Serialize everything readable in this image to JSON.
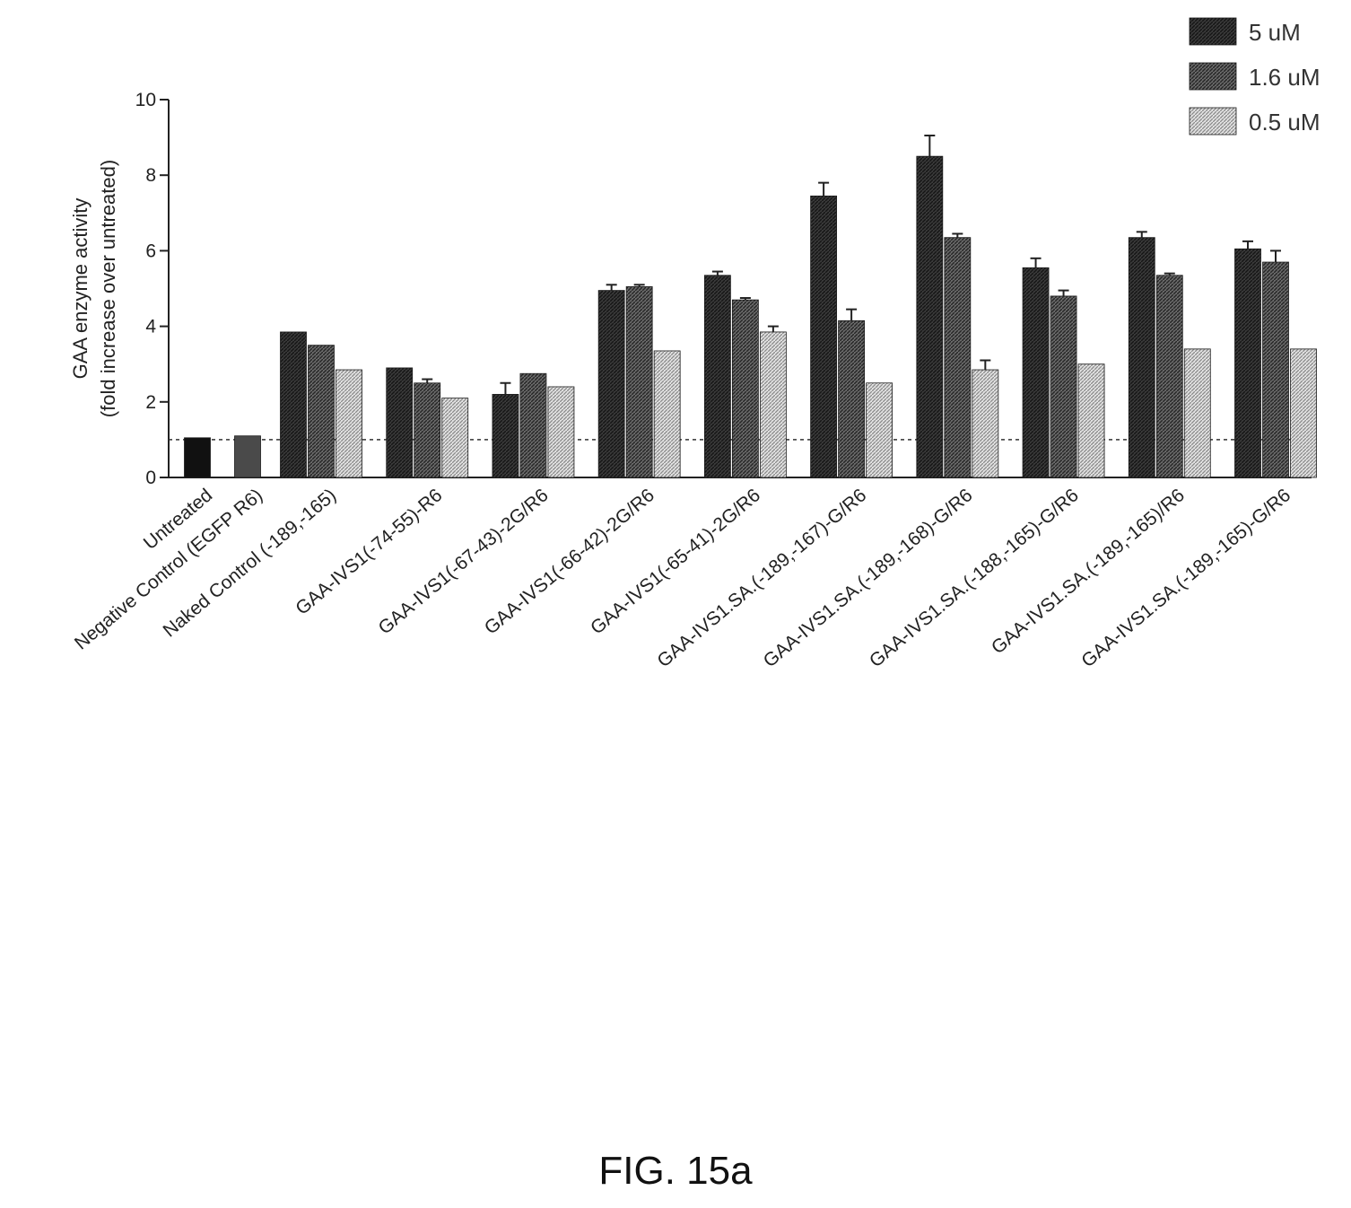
{
  "figure": {
    "caption": "FIG. 15a"
  },
  "chart_data": {
    "type": "bar",
    "title": "",
    "xlabel": "",
    "ylabel": [
      "GAA enzyme activity",
      "(fold increase over untreated)"
    ],
    "ylim": [
      0,
      10
    ],
    "yticks": [
      "0",
      "2",
      "4",
      "6",
      "8",
      "10"
    ],
    "reference_line": 1,
    "legend_position": "top-right",
    "grid": false,
    "categories": [
      "Untreated",
      "Negative Control (EGFP R6)",
      "Naked Control (-189,-165)",
      "GAA-IVS1(-74-55)-R6",
      "GAA-IVS1(-67-43)-2G/R6",
      "GAA-IVS1(-66-42)-2G/R6",
      "GAA-IVS1(-65-41)-2G/R6",
      "GAA-IVS1.SA.(-189,-167)-G/R6",
      "GAA-IVS1.SA.(-189,-168)-G/R6",
      "GAA-IVS1.SA.(-188,-165)-G/R6",
      "GAA-IVS1.SA.(-189,-165)/R6",
      "GAA-IVS1.SA.(-189,-165)-G/R6"
    ],
    "series": [
      {
        "name": "5 uM",
        "color": "#2b2b2b",
        "values": [
          1.05,
          1.1,
          3.85,
          2.9,
          2.2,
          4.95,
          5.35,
          7.45,
          8.5,
          5.55,
          6.35,
          6.05
        ],
        "errors": [
          0,
          0,
          0,
          0,
          0.3,
          0.15,
          0.1,
          0.35,
          0.55,
          0.25,
          0.15,
          0.2
        ]
      },
      {
        "name": "1.6 uM",
        "color": "#555555",
        "values": [
          null,
          null,
          3.5,
          2.5,
          2.75,
          5.05,
          4.7,
          4.15,
          6.35,
          4.8,
          5.35,
          5.7
        ],
        "errors": [
          0,
          0,
          0,
          0.1,
          0,
          0.05,
          0.05,
          0.3,
          0.1,
          0.15,
          0.05,
          0.3
        ]
      },
      {
        "name": "0.5 uM",
        "color": "#a8a8a8",
        "values": [
          null,
          null,
          2.85,
          2.1,
          2.4,
          3.35,
          3.85,
          2.5,
          2.85,
          3.0,
          3.4,
          3.4
        ],
        "errors": [
          0,
          0,
          0,
          0,
          0,
          0,
          0.15,
          0,
          0.25,
          0,
          0,
          0
        ]
      }
    ]
  }
}
